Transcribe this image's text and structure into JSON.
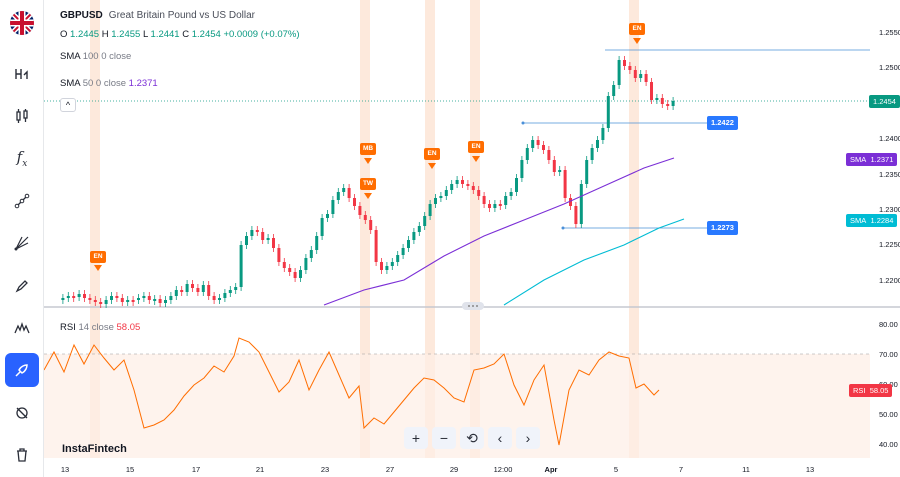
{
  "symbol": {
    "ticker": "GBPUSD",
    "description": "Great Britain Pound vs US Dollar"
  },
  "ohlc": {
    "o_label": "O",
    "o": "1.2445",
    "h_label": "H",
    "h": "1.2455",
    "l_label": "L",
    "l": "1.2441",
    "c_label": "C",
    "c": "1.2454",
    "change": "+0.0009 (+0.07%)"
  },
  "indicators": {
    "sma100": {
      "name": "SMA",
      "params": "100 0 close"
    },
    "sma50": {
      "name": "SMA",
      "params": "50 0 close",
      "value": "1.2371"
    },
    "rsi": {
      "name": "RSI",
      "params": "14 close",
      "value": "58.05"
    }
  },
  "price_axis": [
    "1.2550",
    "1.2500",
    "1.2450",
    "1.2400",
    "1.2350",
    "1.2300",
    "1.2250",
    "1.2200"
  ],
  "rsi_axis": [
    "80.00",
    "70.00",
    "60.00",
    "50.00",
    "40.00"
  ],
  "price_tags": {
    "last": "1.2454",
    "sma_label": "SMA",
    "sma50": "1.2371",
    "sma100": "1.2284",
    "line_high": "1.2422",
    "line_low": "1.2273",
    "rsi_label": "RSI",
    "rsi": "58.05"
  },
  "events": [
    "EN",
    "MB",
    "TW",
    "EN",
    "EN",
    "EN"
  ],
  "dates": [
    "13",
    "15",
    "17",
    "21",
    "23",
    "27",
    "29",
    "12:00",
    "Apr",
    "5",
    "7",
    "11",
    "13"
  ],
  "brand": "InstaFintech",
  "toolbar": {
    "zoom_in": "+",
    "zoom_out": "−",
    "reset": "⟲",
    "prev": "‹",
    "next": "›"
  },
  "colors": {
    "up": "#089981",
    "down": "#f23645",
    "sma50": "#7b2fd6",
    "sma100": "#00bcd4",
    "rsi": "#ff6d00",
    "accent": "#2962ff",
    "event": "#ff6d00"
  },
  "sidebar_icons": [
    "uk-flag-icon",
    "indicator-h-icon",
    "candles-icon",
    "function-icon",
    "trendline-icon",
    "fib-icon",
    "brush-icon",
    "pattern-icon",
    "drawing-icon",
    "eye-off-icon",
    "trash-icon"
  ]
}
